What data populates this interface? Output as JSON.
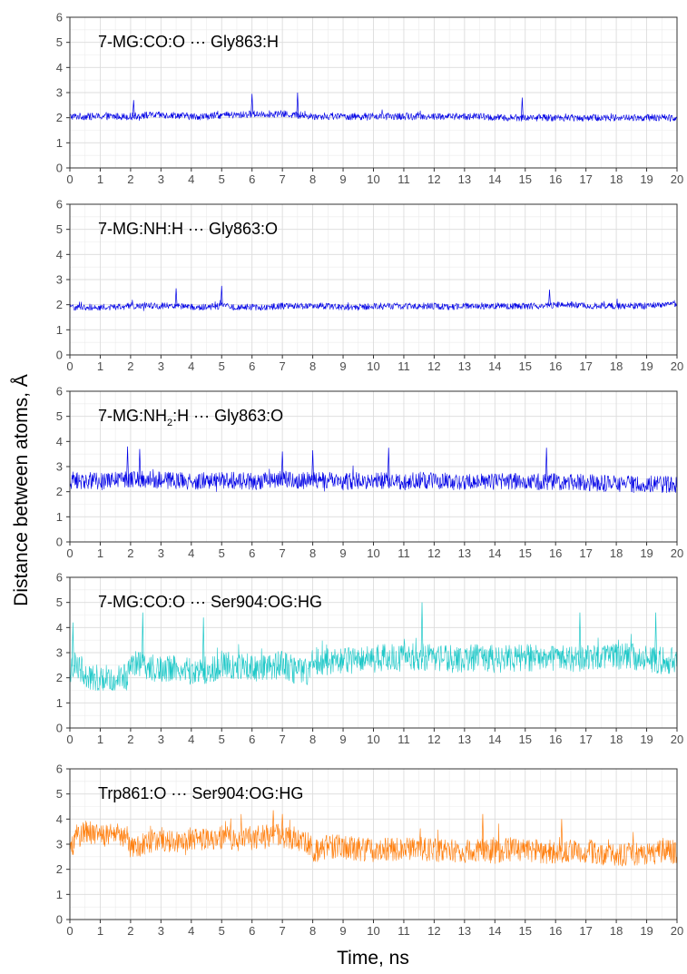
{
  "chart_data": {
    "type": "line",
    "xlabel": "Time, ns",
    "ylabel": "Distance between atoms, Å",
    "xlim": [
      0,
      20
    ],
    "ylim": [
      0,
      6
    ],
    "x_ticks": [
      "0",
      "1",
      "2",
      "3",
      "4",
      "5",
      "6",
      "7",
      "8",
      "9",
      "10",
      "11",
      "12",
      "13",
      "14",
      "15",
      "16",
      "17",
      "18",
      "19",
      "20"
    ],
    "y_ticks": [
      "0",
      "1",
      "2",
      "3",
      "4",
      "5",
      "6"
    ],
    "grid": true,
    "panels": [
      {
        "title": [
          "7-MG:CO:O",
          " ··· Gly863:H"
        ],
        "title_sub": "",
        "color": "#0000e6",
        "series": {
          "x": [
            0,
            0.5,
            1,
            1.5,
            2,
            2.5,
            3,
            3.5,
            4,
            4.5,
            5,
            5.5,
            6,
            6.5,
            7,
            7.5,
            8,
            8.5,
            9,
            9.5,
            10,
            10.5,
            11,
            11.5,
            12,
            12.5,
            13,
            13.5,
            14,
            14.5,
            15,
            15.5,
            16,
            16.5,
            17,
            17.5,
            18,
            18.5,
            19,
            19.5,
            20
          ],
          "mean": [
            2.05,
            2.05,
            2.05,
            2.05,
            2.05,
            2.1,
            2.1,
            2.1,
            2.05,
            2.05,
            2.1,
            2.1,
            2.15,
            2.15,
            2.15,
            2.1,
            2.05,
            2.05,
            2.05,
            2.05,
            2.05,
            2.05,
            2.05,
            2.05,
            2.05,
            2.05,
            2.05,
            2.05,
            2.0,
            2.0,
            2.0,
            2.0,
            2.0,
            2.0,
            2.0,
            2.0,
            2.0,
            2.0,
            2.0,
            2.0,
            2.0
          ],
          "noise": 0.14,
          "peaks": [
            [
              2.1,
              2.7
            ],
            [
              6.0,
              2.95
            ],
            [
              7.5,
              3.0
            ],
            [
              14.9,
              2.8
            ]
          ]
        }
      },
      {
        "title": [
          "7-MG:NH:H",
          " ··· Gly863:O"
        ],
        "title_sub": "",
        "color": "#0000e6",
        "series": {
          "x": [
            0,
            0.5,
            1,
            1.5,
            2,
            2.5,
            3,
            3.5,
            4,
            4.5,
            5,
            5.5,
            6,
            6.5,
            7,
            7.5,
            8,
            8.5,
            9,
            9.5,
            10,
            10.5,
            11,
            11.5,
            12,
            12.5,
            13,
            13.5,
            14,
            14.5,
            15,
            15.5,
            16,
            16.5,
            17,
            17.5,
            18,
            18.5,
            19,
            19.5,
            20
          ],
          "mean": [
            1.9,
            1.9,
            1.9,
            1.9,
            1.95,
            1.95,
            1.95,
            1.95,
            1.9,
            1.9,
            1.95,
            1.9,
            1.9,
            1.9,
            1.95,
            1.95,
            1.95,
            1.95,
            1.9,
            1.9,
            1.95,
            1.95,
            1.95,
            1.95,
            1.95,
            1.9,
            1.95,
            1.95,
            1.95,
            1.95,
            1.95,
            1.95,
            2.0,
            2.0,
            1.95,
            1.95,
            1.95,
            1.95,
            1.95,
            2.0,
            2.0
          ],
          "noise": 0.13,
          "peaks": [
            [
              3.5,
              2.65
            ],
            [
              5.0,
              2.75
            ],
            [
              15.8,
              2.6
            ]
          ]
        }
      },
      {
        "title": [
          "7-MG:NH",
          ":H ··· Gly863:O"
        ],
        "title_sub": "2",
        "color": "#0000e6",
        "series": {
          "x": [
            0,
            0.5,
            1,
            1.5,
            2,
            2.5,
            3,
            3.5,
            4,
            4.5,
            5,
            5.5,
            6,
            6.5,
            7,
            7.5,
            8,
            8.5,
            9,
            9.5,
            10,
            10.5,
            11,
            11.5,
            12,
            12.5,
            13,
            13.5,
            14,
            14.5,
            15,
            15.5,
            16,
            16.5,
            17,
            17.5,
            18,
            18.5,
            19,
            19.5,
            20
          ],
          "mean": [
            2.45,
            2.45,
            2.4,
            2.45,
            2.5,
            2.5,
            2.45,
            2.45,
            2.4,
            2.45,
            2.45,
            2.45,
            2.4,
            2.45,
            2.5,
            2.45,
            2.45,
            2.45,
            2.4,
            2.45,
            2.45,
            2.45,
            2.4,
            2.45,
            2.45,
            2.4,
            2.4,
            2.4,
            2.4,
            2.4,
            2.4,
            2.4,
            2.4,
            2.4,
            2.35,
            2.35,
            2.3,
            2.3,
            2.3,
            2.3,
            2.3
          ],
          "noise": 0.34,
          "peaks": [
            [
              1.9,
              3.8
            ],
            [
              2.3,
              3.7
            ],
            [
              7.0,
              3.6
            ],
            [
              8.0,
              3.65
            ],
            [
              10.5,
              3.75
            ],
            [
              15.7,
              3.75
            ]
          ]
        }
      },
      {
        "title": [
          "7-MG:CO:O",
          " ··· Ser904:OG:HG"
        ],
        "title_sub": "",
        "color": "#1ec8c8",
        "series": {
          "x": [
            0,
            0.2,
            0.5,
            1,
            1.5,
            1.9,
            2.0,
            2.5,
            3,
            3.5,
            4,
            4.5,
            5,
            5.5,
            6,
            6.5,
            7,
            7.5,
            7.9,
            8.0,
            8.5,
            9,
            9.5,
            10,
            10.5,
            11,
            11.5,
            12,
            12.5,
            13,
            13.5,
            14,
            14.5,
            15,
            15.5,
            16,
            16.5,
            17,
            17.5,
            18,
            18.5,
            19,
            19.5,
            20
          ],
          "mean": [
            2.3,
            2.6,
            2.05,
            2.0,
            2.0,
            2.0,
            2.6,
            2.45,
            2.3,
            2.4,
            2.25,
            2.3,
            2.5,
            2.45,
            2.4,
            2.4,
            2.55,
            2.25,
            2.2,
            2.7,
            2.65,
            2.7,
            2.7,
            2.75,
            2.8,
            2.8,
            2.85,
            2.8,
            2.75,
            2.75,
            2.8,
            2.75,
            2.75,
            2.8,
            2.75,
            2.8,
            2.75,
            2.8,
            2.8,
            2.85,
            2.85,
            2.75,
            2.7,
            2.7
          ],
          "noise": 0.55,
          "peaks": [
            [
              0.1,
              4.2
            ],
            [
              2.4,
              4.6
            ],
            [
              4.4,
              4.4
            ],
            [
              11.6,
              5.0
            ],
            [
              16.8,
              4.6
            ],
            [
              19.3,
              4.6
            ]
          ]
        }
      },
      {
        "title": [
          "Trp861:O",
          " ··· Ser904:OG:HG"
        ],
        "title_sub": "",
        "color": "#ff7f0e",
        "series": {
          "x": [
            0,
            0.2,
            0.5,
            1,
            1.5,
            1.9,
            2.0,
            2.5,
            3,
            3.5,
            4,
            4.5,
            5,
            5.5,
            6,
            6.5,
            7,
            7.5,
            7.9,
            8.0,
            8.5,
            9,
            9.5,
            10,
            10.5,
            11,
            11.5,
            12,
            12.5,
            13,
            13.5,
            14,
            14.5,
            15,
            15.5,
            16,
            16.5,
            17,
            17.5,
            18,
            18.5,
            19,
            19.5,
            20
          ],
          "mean": [
            2.7,
            3.3,
            3.45,
            3.4,
            3.35,
            3.3,
            2.8,
            3.1,
            3.2,
            3.1,
            3.2,
            3.15,
            3.3,
            3.2,
            3.25,
            3.3,
            3.35,
            3.2,
            3.0,
            2.7,
            2.9,
            2.9,
            2.8,
            2.75,
            2.8,
            2.75,
            2.85,
            2.75,
            2.8,
            2.7,
            2.75,
            2.7,
            2.8,
            2.75,
            2.7,
            2.7,
            2.7,
            2.75,
            2.65,
            2.6,
            2.6,
            2.65,
            2.7,
            2.7
          ],
          "noise": 0.48,
          "peaks": [
            [
              6.7,
              4.35
            ],
            [
              7.0,
              4.2
            ],
            [
              13.6,
              4.2
            ],
            [
              16.2,
              4.0
            ]
          ]
        }
      }
    ]
  }
}
